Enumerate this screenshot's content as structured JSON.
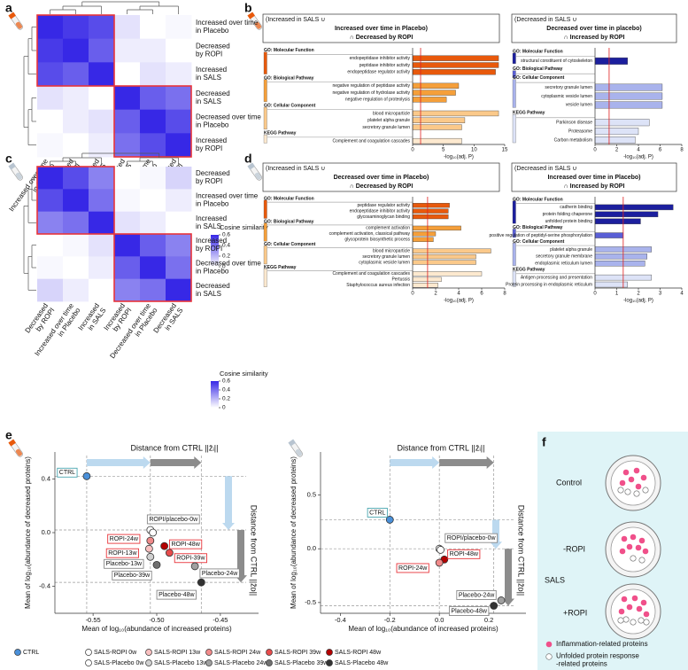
{
  "figure": {
    "panel_labels": [
      "a",
      "b",
      "c",
      "d",
      "e",
      "f"
    ],
    "legend": [
      {
        "name": "CTRL",
        "color": "#4a90d9"
      },
      {
        "name": "SALS-ROPI 0w",
        "color": "#ffffff"
      },
      {
        "name": "SALS-ROPI 13w",
        "color": "#f9c0c0"
      },
      {
        "name": "SALS-ROPI 24w",
        "color": "#f08a8a"
      },
      {
        "name": "SALS-ROPI 39w",
        "color": "#e74c4c"
      },
      {
        "name": "SALS-ROPI 48w",
        "color": "#b30000"
      },
      {
        "name": "SALS-Placebo 0w",
        "color": "#ffffff"
      },
      {
        "name": "SALS-Placebo 13w",
        "color": "#d0d0d0"
      },
      {
        "name": "SALS-Placebo 24w",
        "color": "#a0a0a0"
      },
      {
        "name": "SALS-Placebo 39w",
        "color": "#707070"
      },
      {
        "name": "SALS-Placebo 48w",
        "color": "#333333"
      }
    ],
    "schematic": {
      "labels": [
        "Control",
        "-ROPI",
        "SALS",
        "+ROPI"
      ],
      "legend": [
        [
          "Inflammation-related proteins"
        ],
        [
          "Unfolded protein response",
          "-related proteins"
        ]
      ]
    }
  },
  "chart_data": [
    {
      "type": "heatmap",
      "rows": [
        [
          "Increased over time",
          "in Placebo"
        ],
        [
          "Decreased",
          "by ROPI"
        ],
        [
          "Increased",
          "in SALS"
        ],
        [
          "Decreased",
          "in SALS"
        ],
        [
          "Decreased over time",
          "in Placebo"
        ],
        [
          "Increased",
          "by ROPI"
        ]
      ],
      "values": [
        [
          0.6,
          0.55,
          0.5,
          0.08,
          0,
          0.02
        ],
        [
          0.55,
          0.6,
          0.45,
          0.05,
          0.05,
          0
        ],
        [
          0.5,
          0.45,
          0.6,
          0,
          0.08,
          0.05
        ],
        [
          0.08,
          0.05,
          0,
          0.6,
          0.45,
          0.4
        ],
        [
          0,
          0.05,
          0.08,
          0.45,
          0.6,
          0.5
        ],
        [
          0.02,
          0,
          0.05,
          0.4,
          0.5,
          0.6
        ]
      ],
      "clim": [
        0,
        0.6
      ],
      "colorbar_label": "Cosine similarity",
      "colorbar_ticks": [
        0,
        0.2,
        0.4,
        0.6
      ]
    },
    {
      "type": "bar",
      "orientation": "horizontal",
      "title": [
        "(Increased in SALS ∪",
        "Increased over time in Placebo)",
        "∩ Decreased by ROPI"
      ],
      "sections": [
        {
          "name": "GO: Molecular Function",
          "color": "#e8590c",
          "terms": [
            "endopeptidase inhibitor activity",
            "peptidase inhibitor activity",
            "endopeptidase regulator activity"
          ],
          "values": [
            14,
            14,
            13.5
          ]
        },
        {
          "name": "GO: Biological Pathway",
          "color": "#f59f3a",
          "terms": [
            "negative regulation of peptidase activity",
            "negative regulation of hydrolase activity",
            "negative regulation of proteolysis"
          ],
          "values": [
            7.5,
            7,
            5.5
          ]
        },
        {
          "name": "GO: Cellular Component",
          "color": "#fbc98a",
          "terms": [
            "blood microparticle",
            "platelet alpha granule",
            "secretory granule lumen"
          ],
          "values": [
            14,
            8.5,
            8
          ]
        },
        {
          "name": "KEGG Pathway",
          "color": "#fde9cf",
          "terms": [
            "Complement and coagulation cascades"
          ],
          "values": [
            8
          ]
        }
      ],
      "xlim": [
        0,
        15
      ],
      "xticks": [
        0,
        5,
        10,
        15
      ],
      "xlabel": "-log₁₀(adj. P)",
      "threshold": 1.3
    },
    {
      "type": "bar",
      "orientation": "horizontal",
      "title": [
        "(Decreased in SALS ∪",
        "Decreased over time in placebo)",
        "∩ Increased by ROPI"
      ],
      "sections": [
        {
          "name": "GO: Molecular Function",
          "color": "#1c1f9e",
          "terms": [
            "structural constituent of cytoskeleton"
          ],
          "values": [
            3
          ]
        },
        {
          "name": "GO: Biological Pathway",
          "color": "#5a5fd6",
          "terms": [],
          "values": []
        },
        {
          "name": "GO: Cellular Component",
          "color": "#a9b3ec",
          "terms": [
            "secretory granule lumen",
            "cytoplasmic vesicle lumen",
            "vesicle lumen"
          ],
          "values": [
            6.2,
            6.2,
            6.2
          ]
        },
        {
          "name": "KEGG Pathway",
          "color": "#dde3f7",
          "terms": [
            "Parkinson disease",
            "Proteasome",
            "Carbon metabolism"
          ],
          "values": [
            5,
            4,
            3.7
          ]
        }
      ],
      "xlim": [
        0,
        8
      ],
      "xticks": [
        0,
        2,
        4,
        6,
        8
      ],
      "xlabel": "-log₁₀(adj. P)",
      "threshold": 1.3
    },
    {
      "type": "heatmap",
      "rows": [
        [
          "Decreased",
          "by ROPI"
        ],
        [
          "Increased over time",
          "in Placebo"
        ],
        [
          "Increased",
          "in SALS"
        ],
        [
          "Increased",
          "by ROPI"
        ],
        [
          "Decreased over time",
          "in Placebo"
        ],
        [
          "Decreased",
          "in SALS"
        ]
      ],
      "values": [
        [
          0.6,
          0.5,
          0.35,
          0,
          0.02,
          0.12
        ],
        [
          0.5,
          0.6,
          0.4,
          0.02,
          0,
          0.05
        ],
        [
          0.35,
          0.4,
          0.6,
          0.08,
          0.05,
          0
        ],
        [
          0,
          0.02,
          0.08,
          0.6,
          0.45,
          0.35
        ],
        [
          0.02,
          0,
          0.05,
          0.45,
          0.6,
          0.4
        ],
        [
          0.12,
          0.05,
          0,
          0.35,
          0.4,
          0.6
        ]
      ],
      "clim": [
        0,
        0.6
      ],
      "colorbar_label": "Cosine similarity",
      "colorbar_ticks": [
        0,
        0.2,
        0.4,
        0.6
      ]
    },
    {
      "type": "bar",
      "orientation": "horizontal",
      "title": [
        "(Increased in SALS ∪",
        "Decreased over time in Placebo)",
        "∩ Decreased by ROPI"
      ],
      "sections": [
        {
          "name": "GO: Molecular Function",
          "color": "#e8590c",
          "terms": [
            "peptidase regulator activity",
            "endopeptidase inhibitor activity",
            "glycosaminoglycan binding"
          ],
          "values": [
            3.2,
            3.1,
            3.1
          ]
        },
        {
          "name": "GO: Biological Pathway",
          "color": "#f59f3a",
          "terms": [
            "complement activation",
            "complement activation, classical pathway",
            "glycoprotein biosynthetic process"
          ],
          "values": [
            4.2,
            2,
            1.8
          ]
        },
        {
          "name": "GO: Cellular Component",
          "color": "#fbc98a",
          "terms": [
            "blood microparticle",
            "secretory granule lumen",
            "cytoplasmic vesicle lumen"
          ],
          "values": [
            6.8,
            5.5,
            5.5
          ]
        },
        {
          "name": "KEGG Pathway",
          "color": "#fde9cf",
          "terms": [
            "Complement and coagulation cascades",
            "Pertussis",
            "Staphylococcus aureus infection"
          ],
          "values": [
            6,
            2.5,
            2.2
          ]
        }
      ],
      "xlim": [
        0,
        8
      ],
      "xticks": [
        0,
        2,
        4,
        6,
        8
      ],
      "xlabel": "-log₁₀(adj. P)",
      "threshold": 1.3
    },
    {
      "type": "bar",
      "orientation": "horizontal",
      "title": [
        "(Decreased in SALS ∪",
        "Increased over time in Placebo)",
        "∩ Increased by ROPI"
      ],
      "sections": [
        {
          "name": "GO: Molecular Function",
          "color": "#1c1f9e",
          "terms": [
            "cadherin binding",
            "protein folding chaperone",
            "unfolded protein binding"
          ],
          "values": [
            3.6,
            2.9,
            2.1
          ]
        },
        {
          "name": "GO: Biological Pathway",
          "color": "#5a5fd6",
          "terms": [
            "positive regulation of peptidyl-serine phosphorylation"
          ],
          "values": [
            1.3
          ]
        },
        {
          "name": "GO: Cellular Component",
          "color": "#a9b3ec",
          "terms": [
            "platelet alpha granule",
            "secretory granule membrane",
            "endoplasmic reticulum lumen"
          ],
          "values": [
            2.6,
            2.4,
            2.3
          ]
        },
        {
          "name": "KEGG Pathway",
          "color": "#dde3f7",
          "terms": [
            "Antigen processing and presentation",
            "Protein processing in endoplasmic reticulum"
          ],
          "values": [
            2.6,
            1.5
          ]
        }
      ],
      "xlim": [
        0,
        4
      ],
      "xticks": [
        0,
        1,
        2,
        3,
        4
      ],
      "xlabel": "-log₁₀(adj. P)",
      "threshold": 1.3
    },
    {
      "type": "scatter",
      "top_annotation": "Distance from CTRL ||z̄ᵢ||",
      "side_annotation": "Distance from CTRL ||z̄ᴅ||",
      "xlabel": "Mean of log₁₀(abundance of increased proteins)",
      "ylabel": "Mean of log₁₀(abundance of decreased proteins)",
      "xlim": [
        -0.58,
        -0.42
      ],
      "xticks": [
        -0.55,
        {
          "value": -0.5,
          "label": "-0.50"
        },
        -0.45
      ],
      "ylim": [
        -0.6,
        0.6
      ],
      "yticks": [
        0.4,
        {
          "value": 0,
          "label": "0.0"
        },
        -0.4
      ],
      "points": [
        {
          "label": "CTRL",
          "x": -0.555,
          "y": 0.42,
          "color": "#4a90d9"
        },
        {
          "label": "ROPI/placebo-0w",
          "x": -0.505,
          "y": 0.02,
          "color": "#ffffff"
        },
        {
          "x": -0.503,
          "y": 0,
          "color": "#ffffff"
        },
        {
          "label": "ROPI-24w",
          "x": -0.505,
          "y": -0.06,
          "color": "#f08a8a"
        },
        {
          "label": "ROPI-13w",
          "x": -0.506,
          "y": -0.12,
          "color": "#f9c0c0"
        },
        {
          "label": "ROPI-48w",
          "x": -0.494,
          "y": -0.1,
          "color": "#b30000"
        },
        {
          "label": "ROPI-39w",
          "x": -0.49,
          "y": -0.15,
          "color": "#e74c4c"
        },
        {
          "label": "Placebo-13w",
          "x": -0.505,
          "y": -0.18,
          "color": "#d0d0d0"
        },
        {
          "label": "Placebo-39w",
          "x": -0.5,
          "y": -0.24,
          "color": "#707070"
        },
        {
          "label": "Placebo-24w",
          "x": -0.47,
          "y": -0.25,
          "color": "#a0a0a0"
        },
        {
          "label": "Placebo-48w",
          "x": -0.465,
          "y": -0.37,
          "color": "#333333"
        }
      ]
    },
    {
      "type": "scatter",
      "top_annotation": "Distance from CTRL ||z̄ᵢ||",
      "side_annotation": "Distance from CTRL ||z̄ᴅ||",
      "xlabel": "Mean of log₁₀(abundance of increased proteins)",
      "ylabel": "Mean of log₁₀(abundance of decreased proteins)",
      "xlim": [
        -0.48,
        0.35
      ],
      "xticks": [
        -0.4,
        -0.2,
        {
          "value": 0,
          "label": "0.0"
        },
        0.2
      ],
      "ylim": [
        -0.6,
        0.9
      ],
      "yticks": [
        0.5,
        {
          "value": 0,
          "label": "0.0"
        },
        -0.5
      ],
      "points": [
        {
          "label": "CTRL",
          "x": -0.2,
          "y": 0.27,
          "color": "#4a90d9"
        },
        {
          "label": "ROPI/placebo-0w",
          "x": 0,
          "y": 0,
          "color": "#ffffff"
        },
        {
          "x": 0.005,
          "y": -0.01,
          "color": "#ffffff"
        },
        {
          "label": "ROPI-48w",
          "x": 0.02,
          "y": -0.1,
          "color": "#b30000"
        },
        {
          "label": "ROPI-24w",
          "x": 0,
          "y": -0.13,
          "color": "#f08a8a"
        },
        {
          "label": "Placebo-24w",
          "x": 0.25,
          "y": -0.48,
          "color": "#a0a0a0"
        },
        {
          "label": "Placebo-48w",
          "x": 0.22,
          "y": -0.53,
          "color": "#333333"
        }
      ]
    }
  ]
}
